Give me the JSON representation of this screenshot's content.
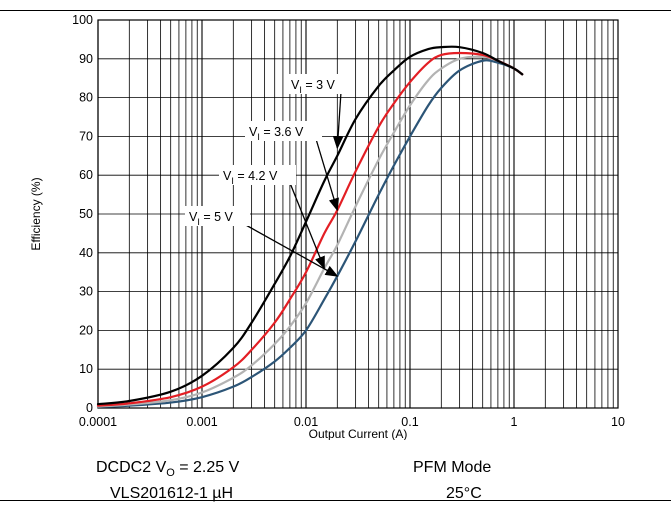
{
  "chart_data": {
    "type": "line",
    "xscale": "log",
    "xlabel": "Output Current (A)",
    "ylabel": "Efficiency (%)",
    "xlim": [
      0.0001,
      10
    ],
    "ylim": [
      0,
      100
    ],
    "xticks": [
      "0.0001",
      "0.001",
      "0.01",
      "0.1",
      "1",
      "10"
    ],
    "yticks": [
      "0",
      "10",
      "20",
      "30",
      "40",
      "50",
      "60",
      "70",
      "80",
      "90",
      "100"
    ],
    "grid": true,
    "series": [
      {
        "name": "3 V",
        "color": "#000000",
        "x": [
          0.0001,
          0.0002,
          0.0005,
          0.001,
          0.002,
          0.003,
          0.005,
          0.007,
          0.01,
          0.015,
          0.02,
          0.03,
          0.05,
          0.07,
          0.1,
          0.15,
          0.2,
          0.3,
          0.5,
          0.7,
          1.0,
          1.2
        ],
        "y": [
          1,
          1.8,
          4.2,
          8.3,
          15.5,
          22,
          32,
          39,
          48,
          58.5,
          65,
          74.5,
          83,
          87,
          90.5,
          92.5,
          93,
          93,
          91.5,
          89.5,
          87.5,
          86
        ]
      },
      {
        "name": "3.6 V",
        "color": "#e31e24",
        "x": [
          0.0001,
          0.0002,
          0.0005,
          0.001,
          0.002,
          0.003,
          0.005,
          0.007,
          0.01,
          0.015,
          0.02,
          0.03,
          0.05,
          0.07,
          0.1,
          0.15,
          0.2,
          0.3,
          0.5,
          0.7,
          1.0,
          1.2
        ],
        "y": [
          0.6,
          1.2,
          2.8,
          5.5,
          10.5,
          15,
          22,
          28,
          35,
          45,
          51,
          61,
          72.5,
          78.5,
          84,
          89,
          91,
          91.5,
          91,
          89.5,
          87.5,
          86
        ]
      },
      {
        "name": "4.2 V",
        "color": "#b3b3b3",
        "x": [
          0.0001,
          0.0002,
          0.0005,
          0.001,
          0.002,
          0.003,
          0.005,
          0.007,
          0.01,
          0.015,
          0.02,
          0.03,
          0.05,
          0.07,
          0.1,
          0.15,
          0.2,
          0.3,
          0.5,
          0.7,
          1.0,
          1.2
        ],
        "y": [
          0.4,
          0.9,
          2.0,
          4.0,
          7.8,
          11,
          16.5,
          21,
          27,
          36,
          42,
          52,
          64,
          71,
          78,
          84.5,
          87.5,
          90,
          90.5,
          89.5,
          87.5,
          86
        ]
      },
      {
        "name": "5 V",
        "color": "#2c5577",
        "x": [
          0.0001,
          0.0002,
          0.0005,
          0.001,
          0.002,
          0.003,
          0.005,
          0.007,
          0.01,
          0.015,
          0.02,
          0.03,
          0.05,
          0.07,
          0.1,
          0.15,
          0.2,
          0.3,
          0.5,
          0.7,
          1.0,
          1.2
        ],
        "y": [
          0.3,
          0.6,
          1.4,
          2.8,
          5.5,
          8,
          12,
          15.5,
          20,
          28,
          34,
          43,
          55,
          62.5,
          70,
          78,
          82.5,
          87,
          89.5,
          89,
          87.5,
          86
        ]
      }
    ],
    "annotations": [
      {
        "prefix": "V",
        "sub": "I",
        "text": " = 3 V"
      },
      {
        "prefix": "V",
        "sub": "I",
        "text": " = 3.6 V"
      },
      {
        "prefix": "V",
        "sub": "I",
        "text": " = 4.2 V"
      },
      {
        "prefix": "V",
        "sub": "I",
        "text": " = 5 V"
      }
    ]
  },
  "captions": {
    "left_line1_prefix": "DCDC2 V",
    "left_line1_sub": "O",
    "left_line1_suffix": " = 2.25 V",
    "right_line1": "PFM Mode",
    "left_line2": "VLS201612-1 µH",
    "right_line2": "25°C"
  }
}
